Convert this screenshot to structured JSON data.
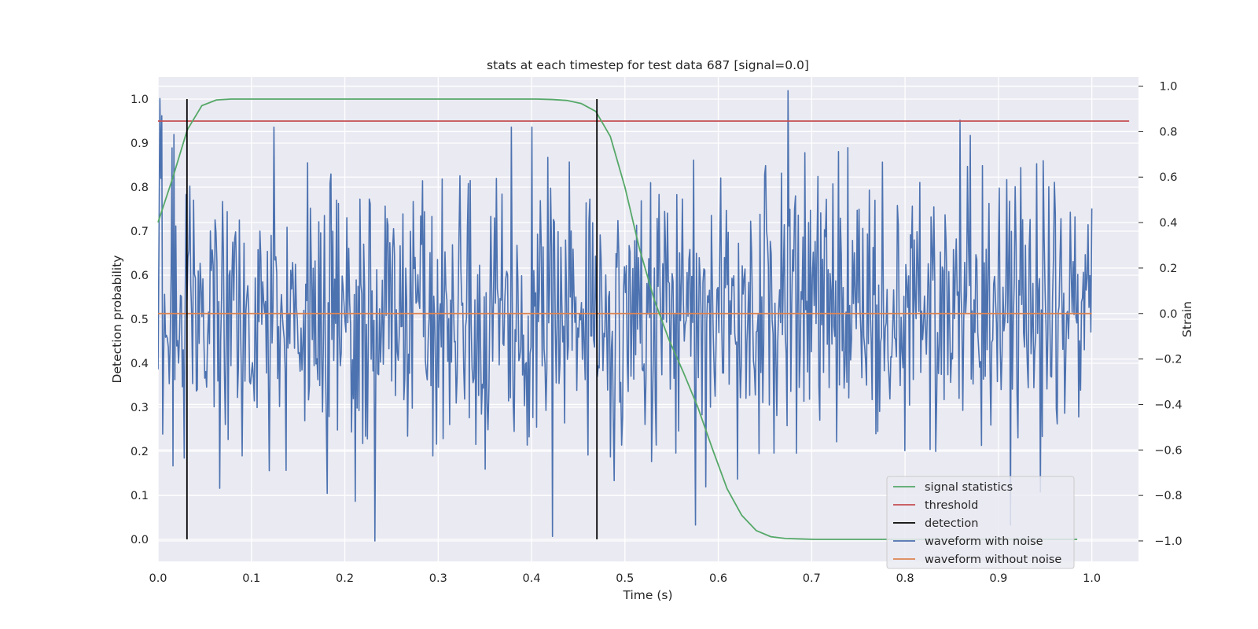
{
  "chart_data": {
    "type": "line",
    "title": "stats at each timestep for test data 687 [signal=0.0]",
    "xlabel": "Time (s)",
    "ylabel": "Detection probability",
    "ylabel_right": "Strain",
    "xlim": [
      0.0,
      1.05
    ],
    "ylim": [
      -0.05,
      1.05
    ],
    "ylim_right": [
      -1.09,
      1.04
    ],
    "xticks": [
      0.0,
      0.1,
      0.2,
      0.3,
      0.4,
      0.5,
      0.6,
      0.7,
      0.8,
      0.9,
      1.0
    ],
    "yticks": [
      0.0,
      0.1,
      0.2,
      0.3,
      0.4,
      0.5,
      0.6,
      0.7,
      0.8,
      0.9,
      1.0
    ],
    "yticks_right": [
      -1.0,
      -0.8,
      -0.6,
      -0.4,
      -0.2,
      0.0,
      0.2,
      0.4,
      0.6,
      0.8,
      1.0
    ],
    "grid": true,
    "legend_position": "lower-right",
    "background": "#eaeaf2",
    "series": [
      {
        "name": "signal statistics",
        "axis": "left",
        "color": "#55a868",
        "x": [
          0.0,
          0.0156,
          0.0313,
          0.0469,
          0.0625,
          0.0781,
          0.0938,
          0.1094,
          0.125,
          0.1406,
          0.1563,
          0.1719,
          0.1875,
          0.2031,
          0.2188,
          0.2344,
          0.25,
          0.2656,
          0.2813,
          0.2969,
          0.3125,
          0.3281,
          0.3438,
          0.3594,
          0.375,
          0.3906,
          0.4063,
          0.4219,
          0.4375,
          0.4531,
          0.4688,
          0.4844,
          0.5,
          0.5156,
          0.5313,
          0.5469,
          0.5625,
          0.5781,
          0.5938,
          0.6094,
          0.625,
          0.6406,
          0.6563,
          0.6719,
          0.6875,
          0.7031,
          0.7188,
          0.7344,
          0.75,
          0.7656,
          0.7813,
          0.7969,
          0.8125,
          0.8281,
          0.8438,
          0.8594,
          0.875,
          0.8906,
          0.9063,
          0.9219,
          0.9375,
          0.9531,
          0.9688,
          0.9844
        ],
        "values": [
          0.72,
          0.82,
          0.93,
          0.985,
          0.998,
          1.0,
          1.0,
          1.0,
          1.0,
          1.0,
          1.0,
          1.0,
          1.0,
          1.0,
          1.0,
          1.0,
          1.0,
          1.0,
          1.0,
          1.0,
          1.0,
          1.0,
          1.0,
          1.0,
          1.0,
          1.0,
          1.0,
          0.999,
          0.997,
          0.99,
          0.972,
          0.915,
          0.8,
          0.66,
          0.545,
          0.455,
          0.38,
          0.3,
          0.205,
          0.115,
          0.055,
          0.02,
          0.006,
          0.002,
          0.001,
          0.0,
          0.0,
          0.0,
          0.0,
          0.0,
          0.0,
          0.0,
          0.0,
          0.0,
          0.0,
          0.0,
          0.0,
          0.0,
          0.0,
          0.0,
          0.0,
          0.0,
          0.0,
          0.0
        ]
      },
      {
        "name": "threshold",
        "axis": "left",
        "color": "#c44e52",
        "x": [
          0.0,
          1.04
        ],
        "values": [
          0.95,
          0.95
        ]
      },
      {
        "name": "detection",
        "axis": "left",
        "color": "#000000",
        "type": "vlines",
        "x": [
          0.031,
          0.47
        ],
        "ymin": 0.0,
        "ymax": 1.0
      },
      {
        "name": "waveform with noise",
        "axis": "right",
        "color": "#4c72b0",
        "x_start": 0.0,
        "x_end": 1.0,
        "n_points": 1000,
        "approx_std": 0.3,
        "approx_range": [
          -1.0,
          1.0
        ],
        "visible_peaks": [
          {
            "x": 0.004,
            "value": 0.87
          },
          {
            "x": 0.004,
            "value": -0.53
          },
          {
            "x": 0.015,
            "value": -0.67
          },
          {
            "x": 0.124,
            "value": 0.82
          },
          {
            "x": 0.232,
            "value": -1.0
          },
          {
            "x": 0.378,
            "value": 0.82
          },
          {
            "x": 0.4,
            "value": 0.82
          },
          {
            "x": 0.421,
            "value": -0.98
          },
          {
            "x": 0.576,
            "value": -0.93
          },
          {
            "x": 0.675,
            "value": 0.98
          },
          {
            "x": 0.859,
            "value": 0.85
          },
          {
            "x": 0.912,
            "value": -0.93
          }
        ]
      },
      {
        "name": "waveform without noise",
        "axis": "right",
        "color": "#dd8452",
        "x": [
          0.0,
          1.0
        ],
        "values": [
          0.0,
          0.0
        ]
      }
    ]
  }
}
